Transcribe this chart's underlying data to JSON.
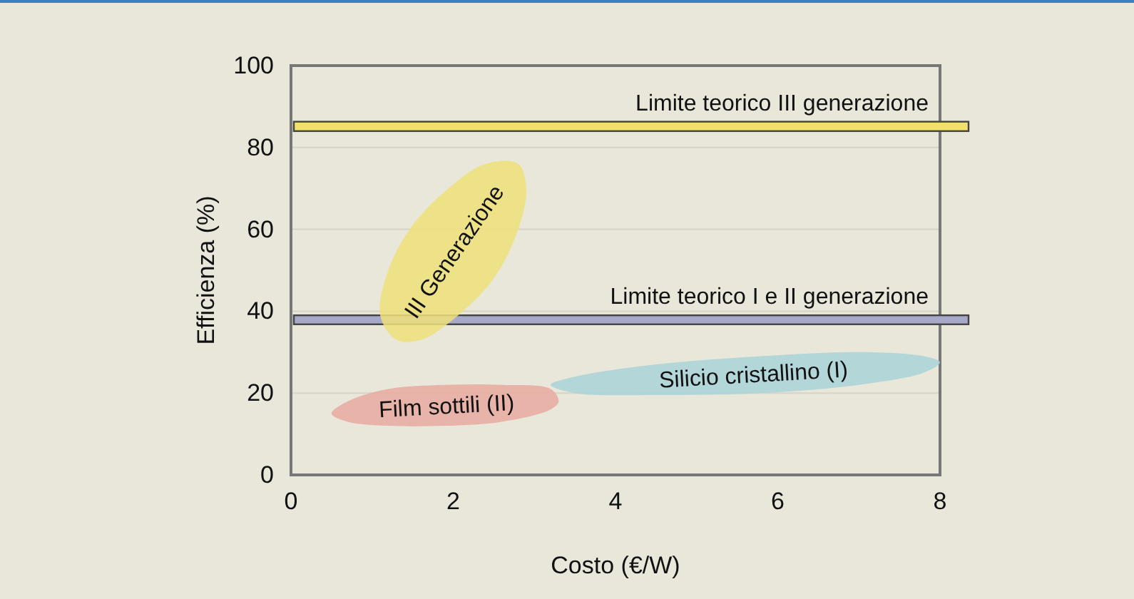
{
  "chart_data": {
    "type": "area",
    "xlabel": "Costo (€/W)",
    "ylabel": "Efficienza (%)",
    "xlim": [
      0,
      8
    ],
    "xticks": [
      0,
      2,
      4,
      6,
      8
    ],
    "ylim": [
      0,
      100
    ],
    "yticks": [
      0,
      20,
      40,
      60,
      80,
      100
    ],
    "grid": "y",
    "bands": [
      {
        "axis": "y",
        "from": 84,
        "to": 86.3,
        "label": "Limite teorico III generazione",
        "color": "#f1e06a"
      },
      {
        "axis": "y",
        "from": 36.8,
        "to": 39,
        "label": "Limite teorico I e II generazione",
        "color": "#a7a9c9"
      }
    ],
    "series": [
      {
        "name": "III Generazione",
        "color": "#efe07a",
        "x": [
          2.8,
          2.9,
          2.8,
          2.5,
          2.0,
          1.6,
          1.3,
          1.1,
          1.2,
          1.5,
          2.0,
          2.4
        ],
        "values": [
          76,
          70,
          60,
          48,
          38,
          33,
          33,
          39,
          50,
          61,
          71,
          76
        ]
      },
      {
        "name": "Film sottili (II)",
        "color": "#e8aaa0",
        "x": [
          3.3,
          3.2,
          2.6,
          1.9,
          1.2,
          0.7,
          0.5,
          0.7,
          1.2,
          1.9,
          2.6,
          3.2
        ],
        "values": [
          18,
          21,
          22,
          22,
          21,
          18,
          15,
          13,
          12,
          12,
          13,
          16
        ]
      },
      {
        "name": "Silicio cristallino (I)",
        "color": "#a9d4d8",
        "x": [
          8.0,
          7.8,
          7.0,
          5.8,
          4.5,
          3.5,
          3.2,
          3.5,
          4.5,
          5.8,
          7.0,
          7.8
        ],
        "values": [
          27.5,
          29,
          30,
          29,
          27,
          24,
          22,
          20,
          19.5,
          20,
          22,
          25
        ]
      }
    ]
  }
}
